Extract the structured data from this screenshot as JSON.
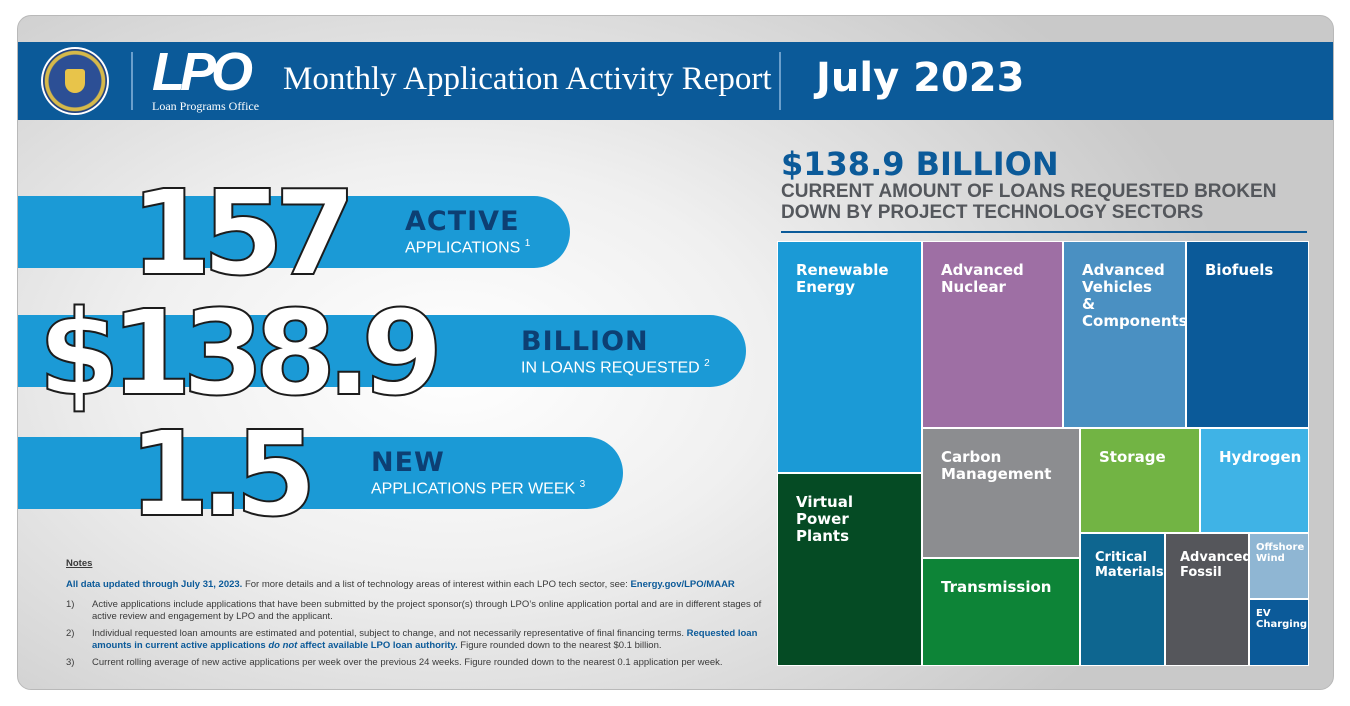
{
  "header": {
    "org_name": "Loan Programs Office",
    "logo_text": "LPO",
    "title": "Monthly Application Activity Report",
    "date": "July 2023"
  },
  "stats": [
    {
      "value": "157",
      "head": "ACTIVE",
      "sub": "APPLICATIONS",
      "ref": "1"
    },
    {
      "value": "$138.9",
      "head": "BILLION",
      "sub": "IN LOANS REQUESTED",
      "ref": "2"
    },
    {
      "value": "1.5",
      "head": "NEW",
      "sub": "APPLICATIONS PER WEEK",
      "ref": "3"
    }
  ],
  "notes": {
    "title": "Notes",
    "lead": "All data updated through July 31, 2023.",
    "lead_rest": "For more details and a list of technology areas of interest within each LPO tech sector, see:",
    "lead_link": "Energy.gov/LPO/MAAR",
    "items": [
      {
        "num": "1)",
        "text": "Active applications include applications that have been submitted by the project sponsor(s) through LPO’s online application portal and are in different stages of active review and engagement by LPO and the applicant."
      },
      {
        "num": "2)",
        "text": "Individual requested loan amounts are estimated and potential, subject to change, and not necessarily representative of final financing terms.",
        "bold_a": "Requested loan amounts in current active applications",
        "italic": "do not",
        "bold_b": "affect available LPO loan authority.",
        "tail": "Figure rounded down to the nearest $0.1 billion."
      },
      {
        "num": "3)",
        "text": "Current rolling average of new active applications per week over the previous 24 weeks. Figure rounded down to the nearest 0.1 application per week."
      }
    ]
  },
  "breakdown": {
    "amount": "$138.9 BILLION",
    "description": "CURRENT AMOUNT OF LOANS REQUESTED BROKEN DOWN BY PROJECT TECHNOLOGY SECTORS",
    "sectors": [
      {
        "label": "Renewable Energy",
        "color": "#1b9ad6"
      },
      {
        "label": "Advanced Nuclear",
        "color": "#9e6fa4"
      },
      {
        "label": "Advanced Vehicles & Components",
        "color": "#4a90c2"
      },
      {
        "label": "Biofuels",
        "color": "#0b5a99"
      },
      {
        "label": "Virtual Power Plants",
        "color": "#054b24"
      },
      {
        "label": "Carbon Management",
        "color": "#8c8d90"
      },
      {
        "label": "Storage",
        "color": "#72b444"
      },
      {
        "label": "Hydrogen",
        "color": "#3fb3e6"
      },
      {
        "label": "Transmission",
        "color": "#0d8437"
      },
      {
        "label": "Critical Materials",
        "color": "#0e6690"
      },
      {
        "label": "Advanced Fossil",
        "color": "#55565b"
      },
      {
        "label": "Offshore Wind",
        "color": "#8fb6d3"
      },
      {
        "label": "EV Charging",
        "color": "#0b5a99"
      }
    ]
  }
}
